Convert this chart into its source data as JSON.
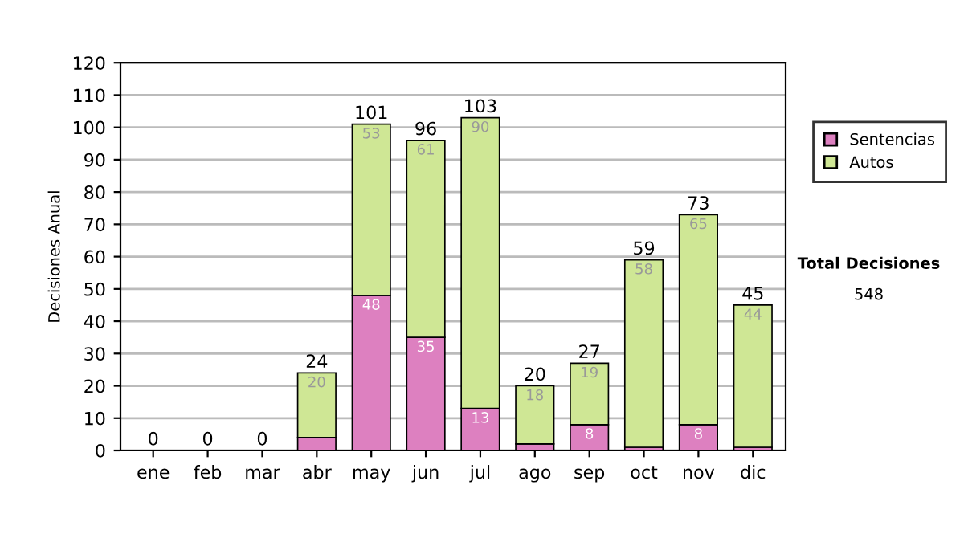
{
  "chart_data": {
    "type": "bar",
    "stacked": true,
    "ylabel": "Decisiones Anual",
    "categories": [
      "ene",
      "feb",
      "mar",
      "abr",
      "may",
      "jun",
      "jul",
      "ago",
      "sep",
      "oct",
      "nov",
      "dic"
    ],
    "series": [
      {
        "name": "Sentencias",
        "color": "#dd80c0",
        "values": [
          0,
          0,
          0,
          4,
          48,
          35,
          13,
          2,
          8,
          1,
          8,
          1
        ],
        "value_labels": [
          null,
          null,
          null,
          null,
          "48",
          "35",
          "13",
          null,
          "8",
          null,
          "8",
          null
        ]
      },
      {
        "name": "Autos",
        "color": "#cfe795",
        "values": [
          0,
          0,
          0,
          20,
          53,
          61,
          90,
          18,
          19,
          58,
          65,
          44
        ],
        "value_labels": [
          null,
          null,
          null,
          "20",
          "53",
          "61",
          "90",
          "18",
          "19",
          "58",
          "65",
          "44"
        ]
      }
    ],
    "totals": [
      "0",
      "0",
      "0",
      "24",
      "101",
      "96",
      "103",
      "20",
      "27",
      "59",
      "73",
      "45"
    ],
    "ylim": [
      0,
      120
    ],
    "yticks": [
      0,
      10,
      20,
      30,
      40,
      50,
      60,
      70,
      80,
      90,
      100,
      110,
      120
    ],
    "grid": "y",
    "legend": "right",
    "annotations": [
      "Total Decisiones",
      "548"
    ]
  }
}
